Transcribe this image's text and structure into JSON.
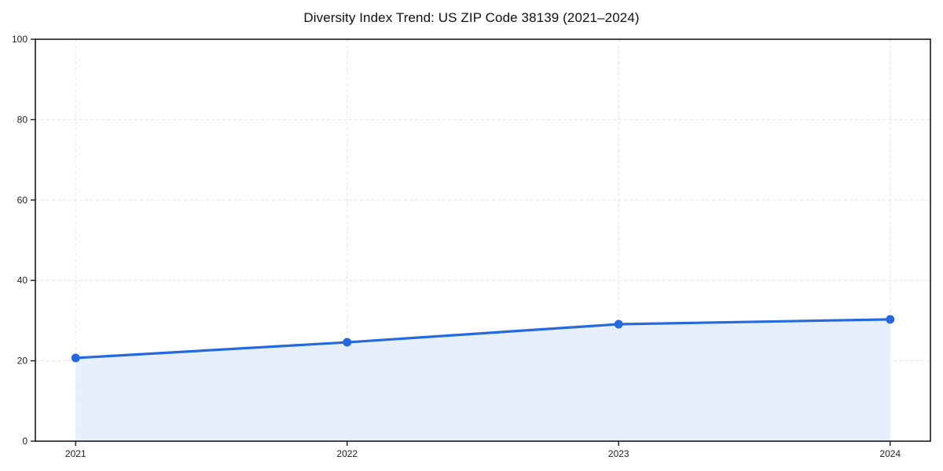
{
  "chart_data": {
    "type": "area",
    "title": "Diversity Index Trend: US ZIP Code 38139 (2021–2024)",
    "xlabel": "",
    "ylabel": "",
    "categories": [
      "2021",
      "2022",
      "2023",
      "2024"
    ],
    "series": [
      {
        "name": "Diversity Index",
        "values": [
          20.7,
          24.6,
          29.1,
          30.3
        ]
      }
    ],
    "ylim": [
      0,
      100
    ],
    "yticks": [
      0,
      20,
      40,
      60,
      80,
      100
    ],
    "grid": "dashed both axes",
    "legend": "none",
    "colors": {
      "line": "#2569e0",
      "marker": "#2569e0",
      "area_fill": "#e8effc",
      "grid": "#e4e4e4",
      "spine": "#1a1a1a",
      "tick_text": "#1f1f1f",
      "background": "#ffffff"
    }
  }
}
